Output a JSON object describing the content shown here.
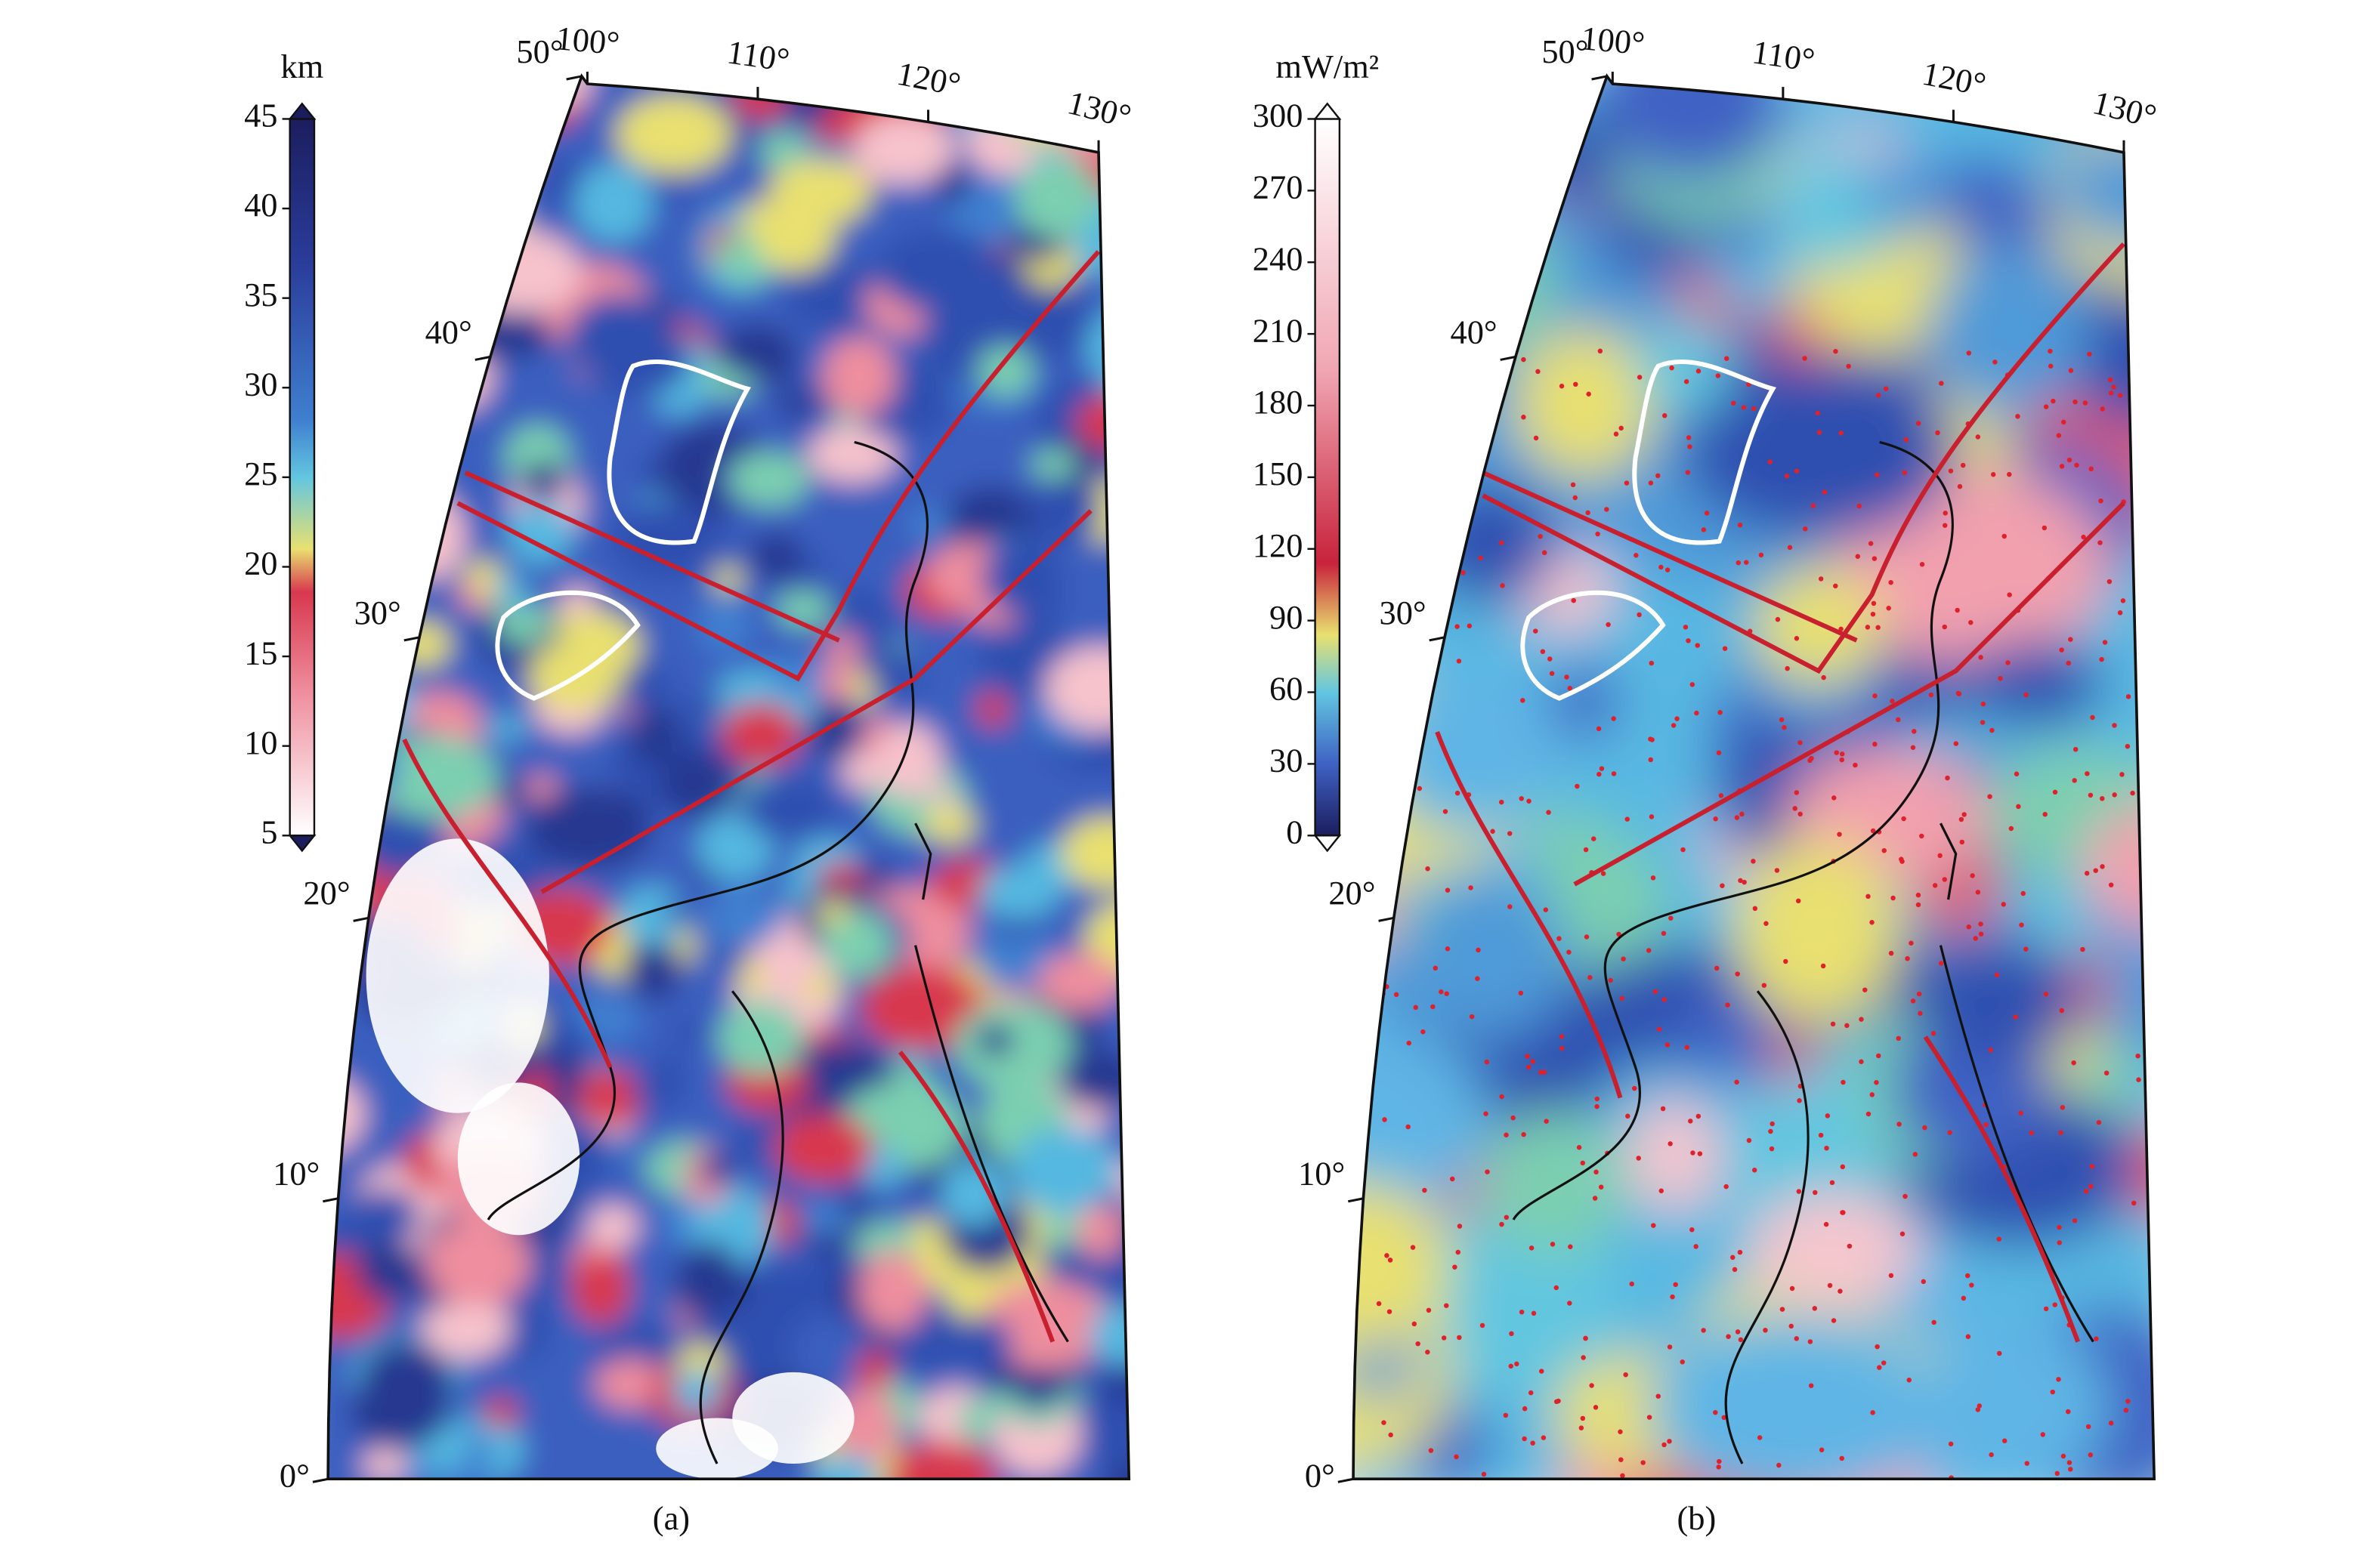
{
  "panels": [
    {
      "colorbar": {
        "unit": "km",
        "ticks": [
          45,
          40,
          35,
          30,
          25,
          20,
          15,
          10,
          5
        ]
      },
      "lon_ticks": [
        {
          "value": 100,
          "label": "100°"
        },
        {
          "value": 110,
          "label": "110°"
        },
        {
          "value": 120,
          "label": "120°"
        },
        {
          "value": 130,
          "label": "130°"
        }
      ],
      "lat_ticks": [
        {
          "value": 50,
          "label": "50°"
        },
        {
          "value": 40,
          "label": "40°"
        },
        {
          "value": 30,
          "label": "30°"
        },
        {
          "value": 20,
          "label": "20°"
        },
        {
          "value": 10,
          "label": "10°"
        },
        {
          "value": 0,
          "label": "0°"
        }
      ],
      "caption": "(a)"
    },
    {
      "colorbar": {
        "unit": "mW/m²",
        "ticks": [
          300,
          270,
          240,
          210,
          180,
          150,
          120,
          90,
          60,
          30,
          0
        ]
      },
      "lon_ticks": [
        {
          "value": 100,
          "label": "100°"
        },
        {
          "value": 110,
          "label": "110°"
        },
        {
          "value": 120,
          "label": "120°"
        },
        {
          "value": 130,
          "label": "130°"
        }
      ],
      "lat_ticks": [
        {
          "value": 50,
          "label": "50°"
        },
        {
          "value": 40,
          "label": "40°"
        },
        {
          "value": 30,
          "label": "30°"
        },
        {
          "value": 20,
          "label": "20°"
        },
        {
          "value": 10,
          "label": "10°"
        },
        {
          "value": 0,
          "label": "0°"
        }
      ],
      "caption": "(b)"
    }
  ]
}
